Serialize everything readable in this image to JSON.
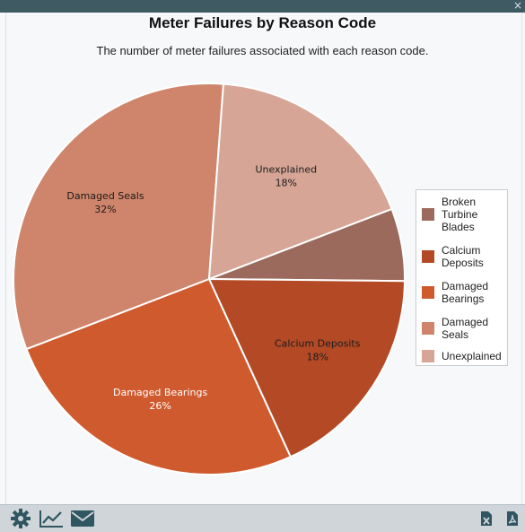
{
  "window": {
    "close_glyph": "×"
  },
  "chart_data": {
    "type": "pie",
    "title": "Meter Failures by Reason Code",
    "subtitle": "The number of meter failures associated with each reason code.",
    "slices": [
      {
        "name": "Broken Turbine Blades",
        "value": 6,
        "color": "#9c6a5d",
        "label": "",
        "label_pct": ""
      },
      {
        "name": "Calcium Deposits",
        "value": 18,
        "color": "#b34a25",
        "label": "Calcium Deposits",
        "label_pct": "18%"
      },
      {
        "name": "Damaged Bearings",
        "value": 26,
        "color": "#cf5a2e",
        "label": "Damaged Bearings",
        "label_pct": "26%"
      },
      {
        "name": "Damaged Seals",
        "value": 32,
        "color": "#cf856b",
        "label": "Damaged Seals",
        "label_pct": "32%"
      },
      {
        "name": "Unexplained",
        "value": 18,
        "color": "#d6a596",
        "label": "Unexplained",
        "label_pct": "18%"
      }
    ],
    "legend": {
      "position": "right",
      "items": [
        {
          "lines": [
            "Broken",
            "Turbine",
            "Blades"
          ],
          "color": "#9c6a5d"
        },
        {
          "lines": [
            "Calcium",
            "Deposits"
          ],
          "color": "#b34a25"
        },
        {
          "lines": [
            "Damaged",
            "Bearings"
          ],
          "color": "#cf5a2e"
        },
        {
          "lines": [
            "Damaged",
            "Seals"
          ],
          "color": "#cf856b"
        },
        {
          "lines": [
            "Unexplained"
          ],
          "color": "#d6a596"
        }
      ]
    }
  },
  "toolbar": {
    "left_icons": [
      "gear-icon",
      "line-chart-icon",
      "envelope-icon"
    ],
    "right_icons": [
      "excel-export-icon",
      "pdf-export-icon"
    ],
    "icon_color": "#2f5661"
  }
}
